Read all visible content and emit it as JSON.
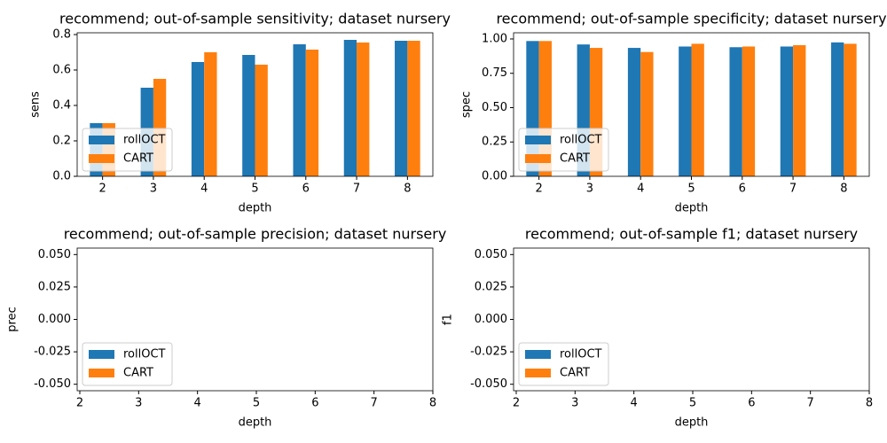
{
  "chart_data": [
    {
      "type": "bar",
      "title": "recommend; out-of-sample sensitivity; dataset nursery",
      "x_label": "depth",
      "y_label": "sens",
      "categories": [
        "2",
        "3",
        "4",
        "5",
        "6",
        "7",
        "8"
      ],
      "series": [
        {
          "name": "rollOCT",
          "color": "#1f77b4",
          "values": [
            0.3,
            0.5,
            0.645,
            0.685,
            0.745,
            0.77,
            0.765
          ]
        },
        {
          "name": "CART",
          "color": "#ff7f0e",
          "values": [
            0.3,
            0.55,
            0.7,
            0.63,
            0.715,
            0.755,
            0.765
          ]
        }
      ],
      "ylim": [
        0,
        0.81
      ],
      "yticks": [
        {
          "value": 0,
          "label": "0.0"
        },
        0.2,
        0.4,
        0.6,
        0.8
      ],
      "legend": "lower left"
    },
    {
      "type": "bar",
      "title": "recommend; out-of-sample specificity; dataset nursery",
      "x_label": "depth",
      "y_label": "spec",
      "categories": [
        "2",
        "3",
        "4",
        "5",
        "6",
        "7",
        "8"
      ],
      "series": [
        {
          "name": "rollOCT",
          "color": "#1f77b4",
          "values": [
            0.985,
            0.96,
            0.935,
            0.945,
            0.94,
            0.945,
            0.975
          ]
        },
        {
          "name": "CART",
          "color": "#ff7f0e",
          "values": [
            0.985,
            0.935,
            0.905,
            0.965,
            0.945,
            0.955,
            0.965
          ]
        }
      ],
      "ylim": [
        0,
        1.045
      ],
      "yticks": [
        {
          "value": 0,
          "label": "0.00"
        },
        0.25,
        {
          "value": 0.5,
          "label": "0.50"
        },
        0.75,
        {
          "value": 1,
          "label": "1.00"
        }
      ],
      "legend": "lower left"
    },
    {
      "type": "bar",
      "title": "recommend; out-of-sample precision; dataset nursery",
      "x_label": "depth",
      "y_label": "prec",
      "x": [],
      "series": [
        {
          "name": "rollOCT",
          "color": "#1f77b4",
          "values": []
        },
        {
          "name": "CART",
          "color": "#ff7f0e",
          "values": []
        }
      ],
      "xlim": [
        1.955,
        8
      ],
      "xticks": [
        2,
        3,
        4,
        5,
        6,
        7,
        8
      ],
      "ylim": [
        -0.055,
        0.055
      ],
      "yticks": [
        {
          "value": -0.05,
          "label": "-0.050"
        },
        -0.025,
        {
          "value": 0,
          "label": "0.000"
        },
        0.025,
        {
          "value": 0.05,
          "label": "0.050"
        }
      ],
      "legend": "lower left"
    },
    {
      "type": "bar",
      "title": "recommend; out-of-sample f1; dataset nursery",
      "x_label": "depth",
      "y_label": "f1",
      "x": [],
      "series": [
        {
          "name": "rollOCT",
          "color": "#1f77b4",
          "values": []
        },
        {
          "name": "CART",
          "color": "#ff7f0e",
          "values": []
        }
      ],
      "xlim": [
        1.955,
        8
      ],
      "xticks": [
        2,
        3,
        4,
        5,
        6,
        7,
        8
      ],
      "ylim": [
        -0.055,
        0.055
      ],
      "yticks": [
        {
          "value": -0.05,
          "label": "-0.050"
        },
        -0.025,
        {
          "value": 0,
          "label": "0.000"
        },
        0.025,
        {
          "value": 0.05,
          "label": "0.050"
        }
      ],
      "legend": "lower left"
    }
  ]
}
